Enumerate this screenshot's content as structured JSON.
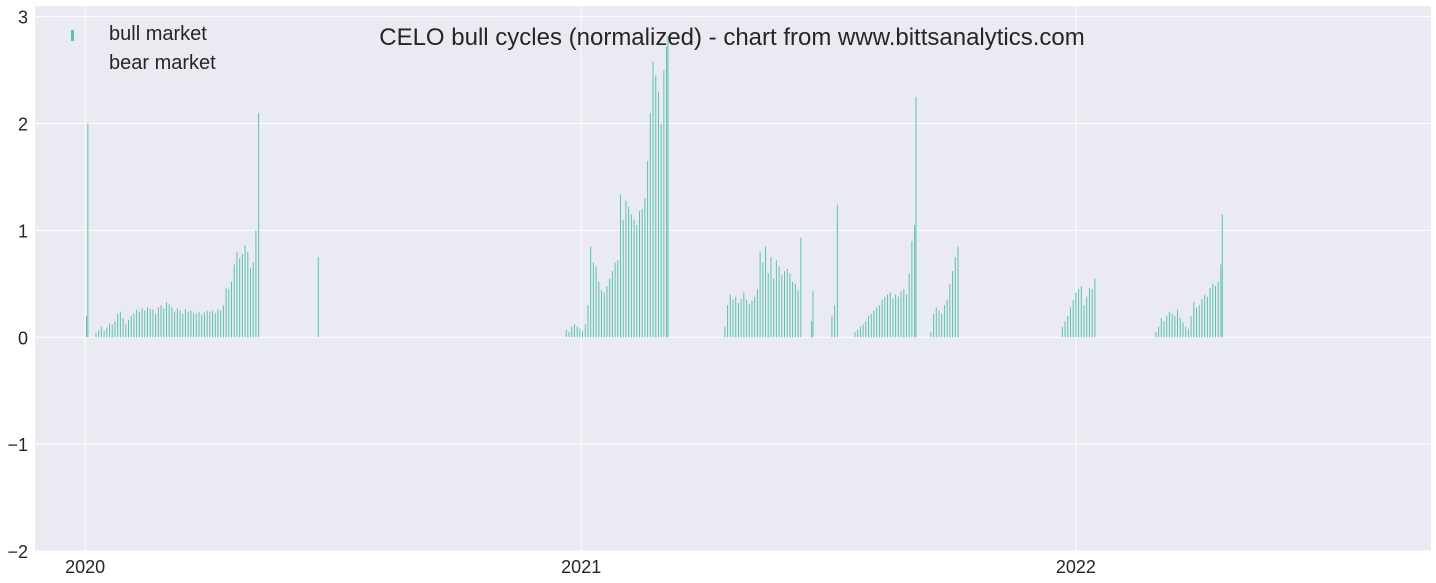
{
  "chart_data": {
    "type": "bar",
    "title": "CELO bull cycles (normalized)  - chart from www.bittsanalytics.com",
    "xlabel": "",
    "ylabel": "",
    "xlim": [
      "2019-11-25",
      "2022-09-20"
    ],
    "ylim": [
      -2,
      3.1
    ],
    "x_ticks": [
      {
        "date": "2020-01-01",
        "label": "2020"
      },
      {
        "date": "2021-01-01",
        "label": "2021"
      },
      {
        "date": "2022-01-01",
        "label": "2022"
      }
    ],
    "y_ticks": [
      {
        "value": 3,
        "label": "3"
      },
      {
        "value": 2,
        "label": "2"
      },
      {
        "value": 1,
        "label": "1"
      },
      {
        "value": 0,
        "label": "0"
      },
      {
        "value": -1,
        "label": "−1"
      },
      {
        "value": -2,
        "label": "−2"
      }
    ],
    "grid": true,
    "legend_position": "top-left",
    "colors": {
      "bull": "#5cc3a9",
      "bear": "#ffffff",
      "background": "#eaeaf2",
      "grid": "#ffffff",
      "text": "#262626"
    },
    "series": [
      {
        "name": "bull market",
        "points": [
          [
            "2020-01-02",
            0.2
          ],
          [
            "2020-01-03",
            2.0
          ],
          [
            "2020-01-09",
            0.04
          ],
          [
            "2020-01-11",
            0.07
          ],
          [
            "2020-01-13",
            0.1
          ],
          [
            "2020-01-15",
            0.06
          ],
          [
            "2020-01-17",
            0.09
          ],
          [
            "2020-01-19",
            0.13
          ],
          [
            "2020-01-21",
            0.12
          ],
          [
            "2020-01-23",
            0.15
          ],
          [
            "2020-01-25",
            0.22
          ],
          [
            "2020-01-27",
            0.24
          ],
          [
            "2020-01-29",
            0.18
          ],
          [
            "2020-01-31",
            0.12
          ],
          [
            "2020-02-02",
            0.16
          ],
          [
            "2020-02-04",
            0.2
          ],
          [
            "2020-02-06",
            0.22
          ],
          [
            "2020-02-08",
            0.26
          ],
          [
            "2020-02-10",
            0.24
          ],
          [
            "2020-02-12",
            0.27
          ],
          [
            "2020-02-14",
            0.25
          ],
          [
            "2020-02-16",
            0.28
          ],
          [
            "2020-02-18",
            0.27
          ],
          [
            "2020-02-20",
            0.26
          ],
          [
            "2020-02-22",
            0.22
          ],
          [
            "2020-02-24",
            0.28
          ],
          [
            "2020-02-26",
            0.3
          ],
          [
            "2020-02-28",
            0.27
          ],
          [
            "2020-03-01",
            0.33
          ],
          [
            "2020-03-03",
            0.31
          ],
          [
            "2020-03-05",
            0.28
          ],
          [
            "2020-03-07",
            0.24
          ],
          [
            "2020-03-09",
            0.27
          ],
          [
            "2020-03-11",
            0.25
          ],
          [
            "2020-03-13",
            0.22
          ],
          [
            "2020-03-15",
            0.26
          ],
          [
            "2020-03-17",
            0.24
          ],
          [
            "2020-03-19",
            0.25
          ],
          [
            "2020-03-21",
            0.23
          ],
          [
            "2020-03-23",
            0.22
          ],
          [
            "2020-03-25",
            0.24
          ],
          [
            "2020-03-27",
            0.21
          ],
          [
            "2020-03-29",
            0.23
          ],
          [
            "2020-03-31",
            0.25
          ],
          [
            "2020-04-02",
            0.24
          ],
          [
            "2020-04-04",
            0.25
          ],
          [
            "2020-04-06",
            0.23
          ],
          [
            "2020-04-08",
            0.26
          ],
          [
            "2020-04-10",
            0.25
          ],
          [
            "2020-04-12",
            0.3
          ],
          [
            "2020-04-14",
            0.46
          ],
          [
            "2020-04-16",
            0.45
          ],
          [
            "2020-04-18",
            0.52
          ],
          [
            "2020-04-20",
            0.68
          ],
          [
            "2020-04-22",
            0.8
          ],
          [
            "2020-04-24",
            0.74
          ],
          [
            "2020-04-26",
            0.78
          ],
          [
            "2020-04-28",
            0.86
          ],
          [
            "2020-04-30",
            0.8
          ],
          [
            "2020-05-02",
            0.65
          ],
          [
            "2020-05-04",
            0.7
          ],
          [
            "2020-05-06",
            1.0
          ],
          [
            "2020-05-08",
            2.1
          ],
          [
            "2020-06-21",
            0.75
          ],
          [
            "2020-12-21",
            0.07
          ],
          [
            "2020-12-23",
            0.05
          ],
          [
            "2020-12-25",
            0.1
          ],
          [
            "2020-12-27",
            0.12
          ],
          [
            "2020-12-29",
            0.1
          ],
          [
            "2020-12-31",
            0.08
          ],
          [
            "2021-01-02",
            0.06
          ],
          [
            "2021-01-04",
            0.12
          ],
          [
            "2021-01-06",
            0.3
          ],
          [
            "2021-01-08",
            0.85
          ],
          [
            "2021-01-10",
            0.7
          ],
          [
            "2021-01-12",
            0.66
          ],
          [
            "2021-01-14",
            0.52
          ],
          [
            "2021-01-16",
            0.44
          ],
          [
            "2021-01-18",
            0.42
          ],
          [
            "2021-01-20",
            0.48
          ],
          [
            "2021-01-22",
            0.55
          ],
          [
            "2021-01-24",
            0.62
          ],
          [
            "2021-01-26",
            0.7
          ],
          [
            "2021-01-28",
            0.72
          ],
          [
            "2021-01-30",
            1.34
          ],
          [
            "2021-02-01",
            1.1
          ],
          [
            "2021-02-03",
            1.28
          ],
          [
            "2021-02-05",
            1.22
          ],
          [
            "2021-02-07",
            1.15
          ],
          [
            "2021-02-09",
            1.1
          ],
          [
            "2021-02-11",
            1.05
          ],
          [
            "2021-02-13",
            1.18
          ],
          [
            "2021-02-15",
            1.2
          ],
          [
            "2021-02-17",
            1.3
          ],
          [
            "2021-02-19",
            1.65
          ],
          [
            "2021-02-21",
            2.1
          ],
          [
            "2021-02-23",
            2.58
          ],
          [
            "2021-02-25",
            2.45
          ],
          [
            "2021-02-27",
            2.3
          ],
          [
            "2021-03-01",
            2.0
          ],
          [
            "2021-03-03",
            2.5
          ],
          [
            "2021-03-05",
            2.72
          ],
          [
            "2021-03-06",
            2.82
          ],
          [
            "2021-04-17",
            0.1
          ],
          [
            "2021-04-19",
            0.3
          ],
          [
            "2021-04-21",
            0.4
          ],
          [
            "2021-04-23",
            0.35
          ],
          [
            "2021-04-25",
            0.38
          ],
          [
            "2021-04-27",
            0.32
          ],
          [
            "2021-04-29",
            0.36
          ],
          [
            "2021-05-01",
            0.42
          ],
          [
            "2021-05-03",
            0.35
          ],
          [
            "2021-05-05",
            0.31
          ],
          [
            "2021-05-07",
            0.34
          ],
          [
            "2021-05-09",
            0.38
          ],
          [
            "2021-05-11",
            0.45
          ],
          [
            "2021-05-13",
            0.8
          ],
          [
            "2021-05-15",
            0.7
          ],
          [
            "2021-05-17",
            0.85
          ],
          [
            "2021-05-19",
            0.6
          ],
          [
            "2021-05-21",
            0.75
          ],
          [
            "2021-05-23",
            0.55
          ],
          [
            "2021-05-25",
            0.72
          ],
          [
            "2021-05-27",
            0.66
          ],
          [
            "2021-05-29",
            0.58
          ],
          [
            "2021-05-31",
            0.62
          ],
          [
            "2021-06-02",
            0.64
          ],
          [
            "2021-06-04",
            0.6
          ],
          [
            "2021-06-06",
            0.52
          ],
          [
            "2021-06-08",
            0.5
          ],
          [
            "2021-06-10",
            0.44
          ],
          [
            "2021-06-12",
            0.93
          ],
          [
            "2021-06-20",
            0.15
          ],
          [
            "2021-06-21",
            0.43
          ],
          [
            "2021-07-05",
            0.2
          ],
          [
            "2021-07-07",
            0.3
          ],
          [
            "2021-07-09",
            1.24
          ],
          [
            "2021-07-22",
            0.05
          ],
          [
            "2021-07-24",
            0.07
          ],
          [
            "2021-07-26",
            0.1
          ],
          [
            "2021-07-28",
            0.12
          ],
          [
            "2021-07-30",
            0.15
          ],
          [
            "2021-08-01",
            0.2
          ],
          [
            "2021-08-03",
            0.22
          ],
          [
            "2021-08-05",
            0.25
          ],
          [
            "2021-08-07",
            0.28
          ],
          [
            "2021-08-09",
            0.3
          ],
          [
            "2021-08-11",
            0.35
          ],
          [
            "2021-08-13",
            0.38
          ],
          [
            "2021-08-15",
            0.4
          ],
          [
            "2021-08-17",
            0.42
          ],
          [
            "2021-08-19",
            0.36
          ],
          [
            "2021-08-21",
            0.4
          ],
          [
            "2021-08-23",
            0.38
          ],
          [
            "2021-08-25",
            0.43
          ],
          [
            "2021-08-27",
            0.45
          ],
          [
            "2021-08-29",
            0.4
          ],
          [
            "2021-08-31",
            0.6
          ],
          [
            "2021-09-02",
            0.9
          ],
          [
            "2021-09-04",
            1.05
          ],
          [
            "2021-09-05",
            2.25
          ],
          [
            "2021-09-16",
            0.05
          ],
          [
            "2021-09-18",
            0.22
          ],
          [
            "2021-09-20",
            0.28
          ],
          [
            "2021-09-22",
            0.25
          ],
          [
            "2021-09-24",
            0.22
          ],
          [
            "2021-09-26",
            0.3
          ],
          [
            "2021-09-28",
            0.35
          ],
          [
            "2021-09-30",
            0.5
          ],
          [
            "2021-10-02",
            0.62
          ],
          [
            "2021-10-04",
            0.75
          ],
          [
            "2021-10-06",
            0.85
          ],
          [
            "2021-12-22",
            0.1
          ],
          [
            "2021-12-24",
            0.15
          ],
          [
            "2021-12-26",
            0.2
          ],
          [
            "2021-12-28",
            0.28
          ],
          [
            "2021-12-30",
            0.35
          ],
          [
            "2022-01-01",
            0.42
          ],
          [
            "2022-01-03",
            0.45
          ],
          [
            "2022-01-05",
            0.48
          ],
          [
            "2022-01-07",
            0.3
          ],
          [
            "2022-01-09",
            0.38
          ],
          [
            "2022-01-11",
            0.46
          ],
          [
            "2022-01-13",
            0.45
          ],
          [
            "2022-01-15",
            0.55
          ],
          [
            "2022-03-01",
            0.05
          ],
          [
            "2022-03-03",
            0.1
          ],
          [
            "2022-03-05",
            0.18
          ],
          [
            "2022-03-07",
            0.15
          ],
          [
            "2022-03-09",
            0.2
          ],
          [
            "2022-03-11",
            0.24
          ],
          [
            "2022-03-13",
            0.22
          ],
          [
            "2022-03-15",
            0.2
          ],
          [
            "2022-03-17",
            0.26
          ],
          [
            "2022-03-19",
            0.18
          ],
          [
            "2022-03-21",
            0.14
          ],
          [
            "2022-03-23",
            0.1
          ],
          [
            "2022-03-25",
            0.08
          ],
          [
            "2022-03-27",
            0.2
          ],
          [
            "2022-03-29",
            0.33
          ],
          [
            "2022-03-31",
            0.28
          ],
          [
            "2022-04-02",
            0.3
          ],
          [
            "2022-04-04",
            0.36
          ],
          [
            "2022-04-06",
            0.4
          ],
          [
            "2022-04-08",
            0.38
          ],
          [
            "2022-04-10",
            0.46
          ],
          [
            "2022-04-12",
            0.5
          ],
          [
            "2022-04-14",
            0.48
          ],
          [
            "2022-04-16",
            0.52
          ],
          [
            "2022-04-18",
            0.68
          ],
          [
            "2022-04-19",
            1.15
          ]
        ]
      },
      {
        "name": "bear market",
        "points": []
      }
    ]
  }
}
